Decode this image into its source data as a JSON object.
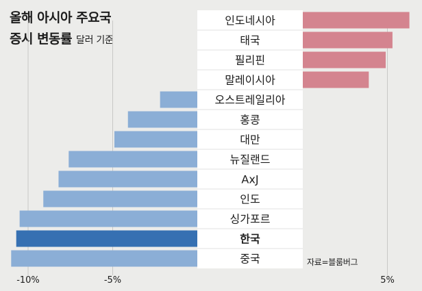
{
  "title": {
    "line1": "올해 아시아 주요국",
    "line2": "증시 변동률",
    "subtitle": "달러 기준"
  },
  "source": "자료=블룸버그",
  "colors": {
    "positive": "#d4848f",
    "negative": "#8baed6",
    "highlight": "#3670b2",
    "gridline": "#c8c8c6",
    "label_bg": "#ffffff",
    "background": "#ececea"
  },
  "chart_data": {
    "type": "bar",
    "orientation": "horizontal",
    "unit": "%",
    "categories": [
      "인도네시아",
      "태국",
      "필리핀",
      "말레이시아",
      "오스트레일리아",
      "홍콩",
      "대만",
      "뉴질랜드",
      "AxJ",
      "인도",
      "싱가포르",
      "한국",
      "중국"
    ],
    "values": [
      6.3,
      5.3,
      4.9,
      3.9,
      -2.2,
      -4.1,
      -4.9,
      -7.6,
      -8.2,
      -9.1,
      -10.5,
      -10.7,
      -11.0
    ],
    "highlight": "한국",
    "x_ticks": [
      {
        "value": -10,
        "label": "-10%"
      },
      {
        "value": -5,
        "label": "-5%"
      },
      {
        "value": 5,
        "label": "5%"
      }
    ],
    "xlim": [
      -11.2,
      6.5
    ],
    "grid": true
  }
}
